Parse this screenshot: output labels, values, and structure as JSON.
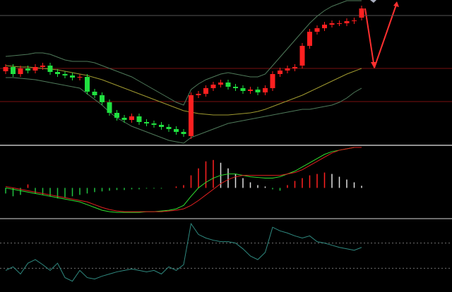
{
  "chart_data": [
    {
      "type": "candlestick",
      "ylim": [
        0,
        205
      ],
      "open": [
        104,
        110,
        100,
        108,
        105,
        110,
        112,
        103,
        100,
        98,
        95,
        96,
        75,
        70,
        60,
        45,
        38,
        35,
        40,
        32,
        30,
        28,
        25,
        22,
        18,
        12,
        70,
        72,
        80,
        85,
        88,
        82,
        80,
        76,
        78,
        74,
        80,
        100,
        105,
        108,
        112,
        140,
        160,
        165,
        170,
        172,
        172,
        175,
        180
      ],
      "close": [
        110,
        100,
        108,
        105,
        110,
        112,
        103,
        100,
        98,
        95,
        96,
        75,
        70,
        60,
        45,
        38,
        35,
        40,
        32,
        30,
        28,
        25,
        22,
        18,
        15,
        70,
        72,
        80,
        85,
        88,
        82,
        80,
        76,
        78,
        74,
        80,
        100,
        105,
        108,
        110,
        140,
        160,
        165,
        170,
        172,
        172,
        175,
        176,
        193
      ],
      "high": [
        114,
        114,
        112,
        112,
        114,
        116,
        116,
        107,
        104,
        102,
        100,
        100,
        79,
        74,
        64,
        49,
        42,
        44,
        44,
        36,
        34,
        32,
        29,
        26,
        22,
        74,
        76,
        84,
        89,
        92,
        92,
        86,
        84,
        82,
        82,
        84,
        104,
        109,
        112,
        114,
        144,
        164,
        169,
        174,
        176,
        176,
        179,
        180,
        197
      ],
      "low": [
        100,
        96,
        96,
        101,
        101,
        106,
        99,
        96,
        94,
        91,
        91,
        71,
        66,
        56,
        41,
        34,
        31,
        31,
        28,
        26,
        24,
        21,
        18,
        14,
        11,
        8,
        66,
        68,
        76,
        81,
        78,
        76,
        72,
        72,
        70,
        70,
        76,
        96,
        101,
        104,
        108,
        136,
        156,
        161,
        166,
        168,
        168,
        171,
        176
      ],
      "up_color": "#ff2020",
      "down_color": "#20e040",
      "levels": [
        {
          "value": 183,
          "color": "#555555"
        },
        {
          "value": 108,
          "color": "#7a1010"
        },
        {
          "value": 61,
          "color": "#7a1010"
        }
      ],
      "series": [
        {
          "color": "#4f7a5a",
          "values": [
            125,
            126,
            127,
            128,
            130,
            130,
            128,
            124,
            120,
            118,
            118,
            118,
            116,
            112,
            108,
            104,
            100,
            96,
            90,
            84,
            78,
            72,
            66,
            60,
            56,
            78,
            86,
            92,
            96,
            100,
            102,
            100,
            98,
            96,
            96,
            100,
            112,
            124,
            136,
            148,
            160,
            172,
            182,
            190,
            196,
            200,
            204,
            204,
            204
          ]
        },
        {
          "color": "#a09a30",
          "values": [
            112,
            111,
            110,
            110,
            109,
            108,
            107,
            106,
            104,
            102,
            100,
            98,
            95,
            92,
            88,
            84,
            80,
            76,
            72,
            68,
            64,
            60,
            56,
            52,
            48,
            46,
            44,
            43,
            42,
            42,
            42,
            43,
            44,
            45,
            47,
            50,
            54,
            58,
            62,
            66,
            70,
            75,
            80,
            85,
            90,
            95,
            100,
            104,
            108
          ]
        },
        {
          "color": "#4f7a5a",
          "values": [
            95,
            95,
            94,
            93,
            92,
            90,
            88,
            86,
            84,
            82,
            80,
            72,
            64,
            56,
            46,
            38,
            32,
            26,
            22,
            18,
            14,
            10,
            6,
            4,
            2,
            10,
            14,
            18,
            22,
            26,
            30,
            32,
            34,
            36,
            38,
            40,
            42,
            44,
            46,
            48,
            50,
            50,
            52,
            54,
            56,
            60,
            66,
            74,
            80
          ]
        }
      ]
    },
    {
      "type": "macd",
      "ylim": [
        -43,
        60
      ],
      "values": [
        -8,
        -12,
        -10,
        5,
        -8,
        -10,
        -12,
        -15,
        -14,
        -12,
        -10,
        -8,
        -6,
        -5,
        -4,
        -3,
        -3,
        -2,
        -2,
        -1,
        -1,
        -1,
        0,
        2,
        4,
        18,
        28,
        38,
        40,
        36,
        28,
        20,
        14,
        8,
        4,
        2,
        -2,
        -4,
        4,
        10,
        14,
        18,
        20,
        22,
        20,
        16,
        12,
        8,
        3
      ],
      "series": [
        {
          "color": "#30e030",
          "values": [
            0,
            -2,
            -4,
            -6,
            -8,
            -10,
            -12,
            -14,
            -16,
            -18,
            -20,
            -24,
            -28,
            -32,
            -34,
            -35,
            -35,
            -35,
            -35,
            -34,
            -34,
            -33,
            -32,
            -30,
            -25,
            -12,
            0,
            8,
            14,
            18,
            20,
            20,
            18,
            16,
            15,
            14,
            14,
            16,
            20,
            24,
            30,
            36,
            42,
            48,
            52,
            54,
            56,
            58,
            58
          ]
        },
        {
          "color": "#e02020",
          "values": [
            2,
            0,
            -2,
            -4,
            -6,
            -8,
            -10,
            -12,
            -14,
            -16,
            -18,
            -20,
            -24,
            -28,
            -31,
            -33,
            -34,
            -34,
            -34,
            -34,
            -34,
            -34,
            -33,
            -32,
            -30,
            -25,
            -18,
            -10,
            -2,
            6,
            12,
            16,
            18,
            18,
            18,
            18,
            18,
            18,
            20,
            22,
            26,
            32,
            38,
            44,
            50,
            54,
            56,
            58,
            58
          ]
        }
      ]
    },
    {
      "type": "line",
      "ylim": [
        0,
        100
      ],
      "levels": [
        68,
        33
      ],
      "series": [
        {
          "color": "#2f8a80",
          "values": [
            30,
            35,
            25,
            40,
            45,
            38,
            30,
            40,
            20,
            15,
            30,
            20,
            18,
            22,
            25,
            28,
            30,
            32,
            30,
            28,
            30,
            25,
            35,
            30,
            38,
            95,
            80,
            75,
            72,
            70,
            70,
            68,
            60,
            50,
            45,
            55,
            90,
            85,
            82,
            78,
            75,
            78,
            70,
            68,
            65,
            62,
            60,
            58,
            62
          ]
        }
      ]
    }
  ]
}
